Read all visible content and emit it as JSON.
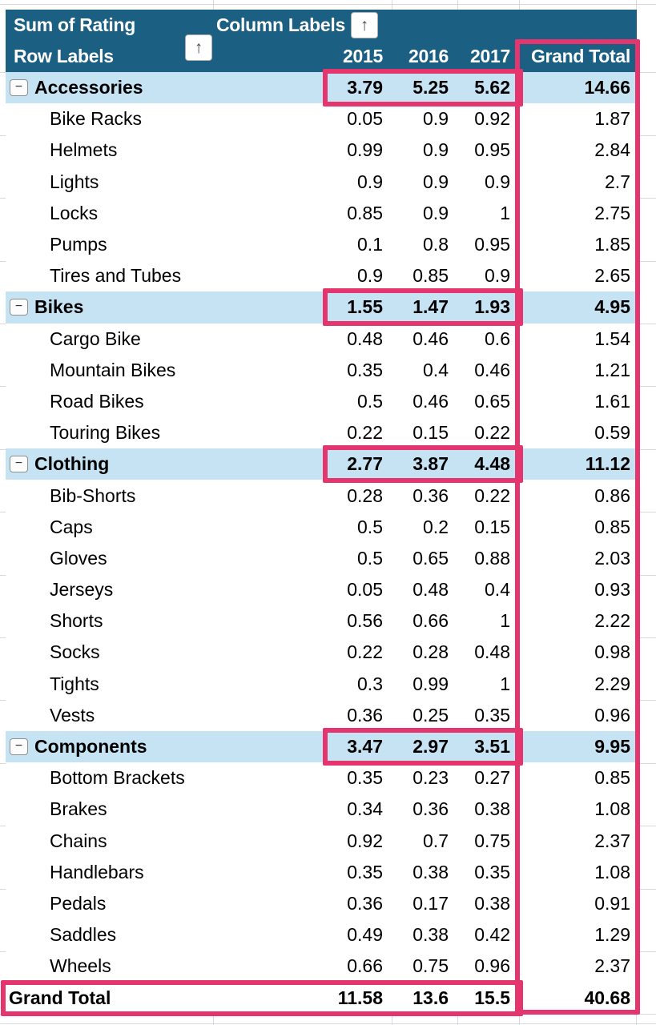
{
  "pivot": {
    "title": "Sum of Rating",
    "column_labels_label": "Column Labels",
    "row_labels_label": "Row Labels",
    "sort_icon": "↑",
    "collapse_icon": "−",
    "years": [
      "2015",
      "2016",
      "2017"
    ],
    "grand_total_column_label": "Grand Total",
    "groups": [
      {
        "name": "Accessories",
        "values": [
          "3.79",
          "5.25",
          "5.62"
        ],
        "total": "14.66",
        "items": [
          {
            "name": "Bike Racks",
            "values": [
              "0.05",
              "0.9",
              "0.92"
            ],
            "total": "1.87"
          },
          {
            "name": "Helmets",
            "values": [
              "0.99",
              "0.9",
              "0.95"
            ],
            "total": "2.84"
          },
          {
            "name": "Lights",
            "values": [
              "0.9",
              "0.9",
              "0.9"
            ],
            "total": "2.7"
          },
          {
            "name": "Locks",
            "values": [
              "0.85",
              "0.9",
              "1"
            ],
            "total": "2.75"
          },
          {
            "name": "Pumps",
            "values": [
              "0.1",
              "0.8",
              "0.95"
            ],
            "total": "1.85"
          },
          {
            "name": "Tires and Tubes",
            "values": [
              "0.9",
              "0.85",
              "0.9"
            ],
            "total": "2.65"
          }
        ]
      },
      {
        "name": "Bikes",
        "values": [
          "1.55",
          "1.47",
          "1.93"
        ],
        "total": "4.95",
        "items": [
          {
            "name": "Cargo Bike",
            "values": [
              "0.48",
              "0.46",
              "0.6"
            ],
            "total": "1.54"
          },
          {
            "name": "Mountain Bikes",
            "values": [
              "0.35",
              "0.4",
              "0.46"
            ],
            "total": "1.21"
          },
          {
            "name": "Road Bikes",
            "values": [
              "0.5",
              "0.46",
              "0.65"
            ],
            "total": "1.61"
          },
          {
            "name": "Touring Bikes",
            "values": [
              "0.22",
              "0.15",
              "0.22"
            ],
            "total": "0.59"
          }
        ]
      },
      {
        "name": "Clothing",
        "values": [
          "2.77",
          "3.87",
          "4.48"
        ],
        "total": "11.12",
        "items": [
          {
            "name": "Bib-Shorts",
            "values": [
              "0.28",
              "0.36",
              "0.22"
            ],
            "total": "0.86"
          },
          {
            "name": "Caps",
            "values": [
              "0.5",
              "0.2",
              "0.15"
            ],
            "total": "0.85"
          },
          {
            "name": "Gloves",
            "values": [
              "0.5",
              "0.65",
              "0.88"
            ],
            "total": "2.03"
          },
          {
            "name": "Jerseys",
            "values": [
              "0.05",
              "0.48",
              "0.4"
            ],
            "total": "0.93"
          },
          {
            "name": "Shorts",
            "values": [
              "0.56",
              "0.66",
              "1"
            ],
            "total": "2.22"
          },
          {
            "name": "Socks",
            "values": [
              "0.22",
              "0.28",
              "0.48"
            ],
            "total": "0.98"
          },
          {
            "name": "Tights",
            "values": [
              "0.3",
              "0.99",
              "1"
            ],
            "total": "2.29"
          },
          {
            "name": "Vests",
            "values": [
              "0.36",
              "0.25",
              "0.35"
            ],
            "total": "0.96"
          }
        ]
      },
      {
        "name": "Components",
        "values": [
          "3.47",
          "2.97",
          "3.51"
        ],
        "total": "9.95",
        "items": [
          {
            "name": "Bottom Brackets",
            "values": [
              "0.35",
              "0.23",
              "0.27"
            ],
            "total": "0.85"
          },
          {
            "name": "Brakes",
            "values": [
              "0.34",
              "0.36",
              "0.38"
            ],
            "total": "1.08"
          },
          {
            "name": "Chains",
            "values": [
              "0.92",
              "0.7",
              "0.75"
            ],
            "total": "2.37"
          },
          {
            "name": "Handlebars",
            "values": [
              "0.35",
              "0.38",
              "0.35"
            ],
            "total": "1.08"
          },
          {
            "name": "Pedals",
            "values": [
              "0.36",
              "0.17",
              "0.38"
            ],
            "total": "0.91"
          },
          {
            "name": "Saddles",
            "values": [
              "0.49",
              "0.38",
              "0.42"
            ],
            "total": "1.29"
          },
          {
            "name": "Wheels",
            "values": [
              "0.66",
              "0.75",
              "0.96"
            ],
            "total": "2.37"
          }
        ]
      }
    ],
    "grand_total_row": {
      "label": "Grand Total",
      "values": [
        "11.58",
        "13.6",
        "15.5"
      ],
      "total": "40.68"
    }
  },
  "colors": {
    "header_bg": "#1B5F83",
    "category_bg": "#C6E3F4",
    "highlight_pink": "#E4356F",
    "gridline": "#D9D9D9",
    "header_text": "#FFFFFF",
    "body_text": "#000000"
  }
}
